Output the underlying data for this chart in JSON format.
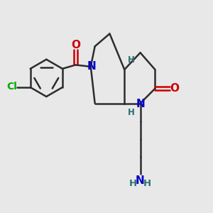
{
  "bg_color": "#e8e8e8",
  "bond_color": "#2d2d2d",
  "bond_width": 1.8,
  "atom_colors": {
    "C": "#2d2d2d",
    "N": "#0000cc",
    "O": "#cc0000",
    "Cl": "#00aa00",
    "H": "#2d6e6e"
  },
  "font_size_atom": 11,
  "font_size_small": 8.5
}
